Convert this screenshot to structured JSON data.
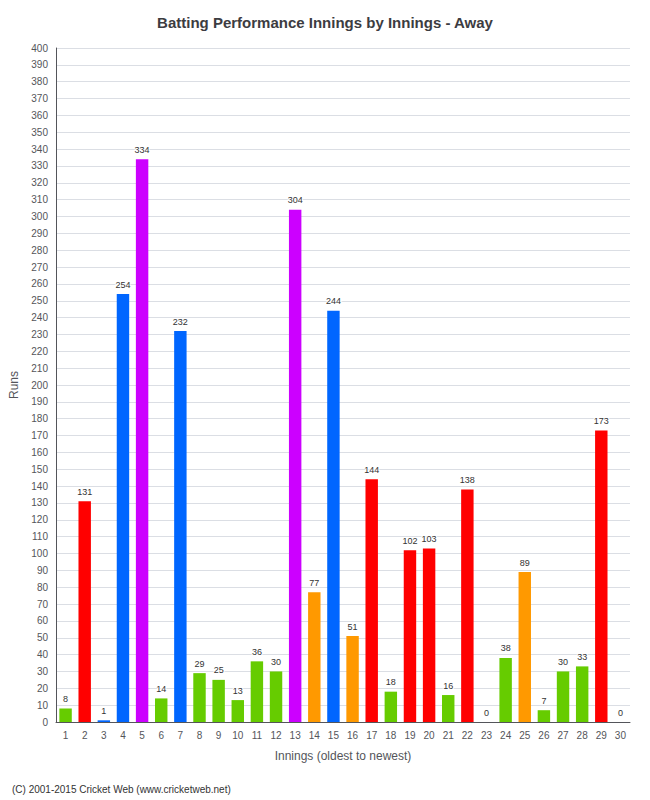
{
  "chart_data": {
    "type": "bar",
    "title": "Batting Performance Innings by Innings - Away",
    "xlabel": "Innings (oldest to newest)",
    "ylabel": "Runs",
    "annotations": [
      "(C) 2001-2015 Cricket Web (www.cricketweb.net)"
    ],
    "categories": [
      "1",
      "2",
      "3",
      "4",
      "5",
      "6",
      "7",
      "8",
      "9",
      "10",
      "11",
      "12",
      "13",
      "14",
      "15",
      "16",
      "17",
      "18",
      "19",
      "20",
      "21",
      "22",
      "23",
      "24",
      "25",
      "26",
      "27",
      "28",
      "29",
      "30"
    ],
    "values": [
      8,
      131,
      1,
      254,
      334,
      14,
      232,
      29,
      25,
      13,
      36,
      30,
      304,
      77,
      244,
      51,
      144,
      18,
      102,
      103,
      16,
      138,
      0,
      38,
      89,
      7,
      30,
      33,
      173,
      0
    ],
    "colors": [
      "#66cc00",
      "#ff0000",
      "#0066ff",
      "#0066ff",
      "#cc00ff",
      "#66cc00",
      "#0066ff",
      "#66cc00",
      "#66cc00",
      "#66cc00",
      "#66cc00",
      "#66cc00",
      "#cc00ff",
      "#ff9900",
      "#0066ff",
      "#ff9900",
      "#ff0000",
      "#66cc00",
      "#ff0000",
      "#ff0000",
      "#66cc00",
      "#ff0000",
      "#0066ff",
      "#66cc00",
      "#ff9900",
      "#66cc00",
      "#66cc00",
      "#66cc00",
      "#ff0000",
      "#0066ff"
    ],
    "ylim": [
      0,
      400
    ],
    "yticks": [
      0,
      10,
      20,
      30,
      40,
      50,
      60,
      70,
      80,
      90,
      100,
      110,
      120,
      130,
      140,
      150,
      160,
      170,
      180,
      190,
      200,
      210,
      220,
      230,
      240,
      250,
      260,
      270,
      280,
      290,
      300,
      310,
      320,
      330,
      340,
      350,
      360,
      370,
      380,
      390,
      400
    ],
    "grid": true,
    "data_labels": true
  }
}
